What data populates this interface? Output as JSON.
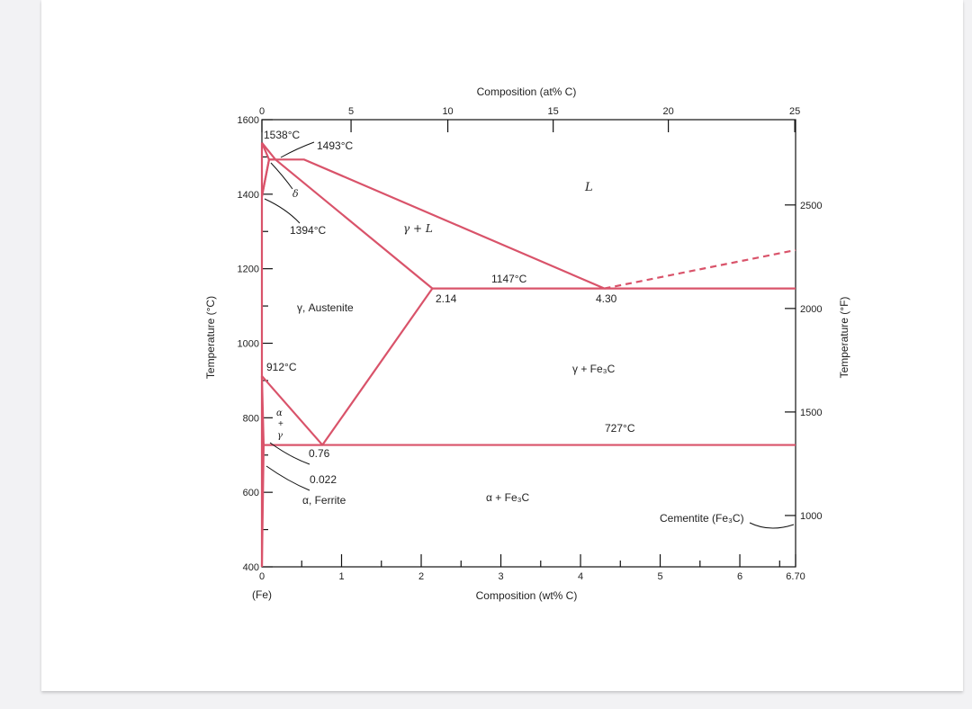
{
  "page": {
    "background": "#f2f2f4",
    "card_color": "#ffffff"
  },
  "colors": {
    "phase_line": "#d9536a",
    "axis": "#111111"
  },
  "axes": {
    "top_title": "Composition (at% C)",
    "top_ticks": [
      "0",
      "5",
      "10",
      "15",
      "20",
      "25"
    ],
    "bottom_title": "Composition (wt% C)",
    "bottom_ticks": [
      "0",
      "1",
      "2",
      "3",
      "4",
      "5",
      "6",
      "6.70"
    ],
    "bottom_sub": "(Fe)",
    "left_title": "Temperature (°C)",
    "left_ticks": [
      "1600",
      "1400",
      "1200",
      "1000",
      "800",
      "600",
      "400"
    ],
    "right_title": "Temperature (°F)",
    "right_ticks": [
      "2500",
      "2000",
      "1500",
      "1000"
    ]
  },
  "labels": {
    "t1538": "1538°C",
    "t1493": "1493°C",
    "delta": "δ",
    "t1394": "1394°C",
    "liquid": "L",
    "gamma_l": "γ + L",
    "t1147": "1147°C",
    "c214": "2.14",
    "c430": "4.30",
    "austenite": "γ, Austenite",
    "t912": "912°C",
    "gamma_fe3c": "γ + Fe₃C",
    "alpha_top": "α",
    "alpha_plus": "+",
    "alpha_gamma": "γ",
    "t727": "727°C",
    "c076": "0.76",
    "c0022": "0.022",
    "ferrite": "α, Ferrite",
    "alpha_fe3c": "α + Fe₃C",
    "cementite": "Cementite (Fe₃C)"
  },
  "chart_data": {
    "type": "line",
    "title": "",
    "xlabel": "Composition (wt% C)",
    "ylabel": "Temperature (°C)",
    "x2label": "Composition (at% C)",
    "y2label": "Temperature (°F)",
    "xlim": [
      0,
      6.7
    ],
    "ylim": [
      400,
      1600
    ],
    "series": [
      {
        "values": [
          [
            0,
            1538
          ],
          [
            0.09,
            1493
          ],
          [
            0.53,
            1493
          ],
          [
            4.3,
            1147
          ]
        ]
      },
      {
        "values": [
          [
            0,
            1538
          ],
          [
            0.17,
            1493
          ]
        ]
      },
      {
        "values": [
          [
            0,
            1394
          ],
          [
            0.09,
            1493
          ],
          [
            0.17,
            1493
          ],
          [
            2.14,
            1147
          ],
          [
            0.76,
            727
          ],
          [
            0.022,
            727
          ],
          [
            0,
            400
          ]
        ]
      },
      {
        "values": [
          [
            0,
            1394
          ],
          [
            0.09,
            1493
          ]
        ]
      },
      {
        "values": [
          [
            0,
            912
          ],
          [
            0.76,
            727
          ]
        ]
      },
      {
        "values": [
          [
            0,
            912
          ],
          [
            0.022,
            727
          ]
        ]
      },
      {
        "values": [
          [
            2.14,
            1147
          ],
          [
            6.7,
            1147
          ]
        ]
      },
      {
        "values": [
          [
            0.022,
            727
          ],
          [
            6.7,
            727
          ]
        ]
      },
      {
        "values": [
          [
            4.3,
            1147
          ],
          [
            5.3,
            1190
          ],
          [
            6.7,
            1250
          ]
        ],
        "style": "dashed"
      }
    ],
    "annotations": [
      "1538°C",
      "1493°C",
      "1394°C",
      "1147°C",
      "912°C",
      "727°C",
      "2.14",
      "4.30",
      "0.76",
      "0.022"
    ]
  }
}
